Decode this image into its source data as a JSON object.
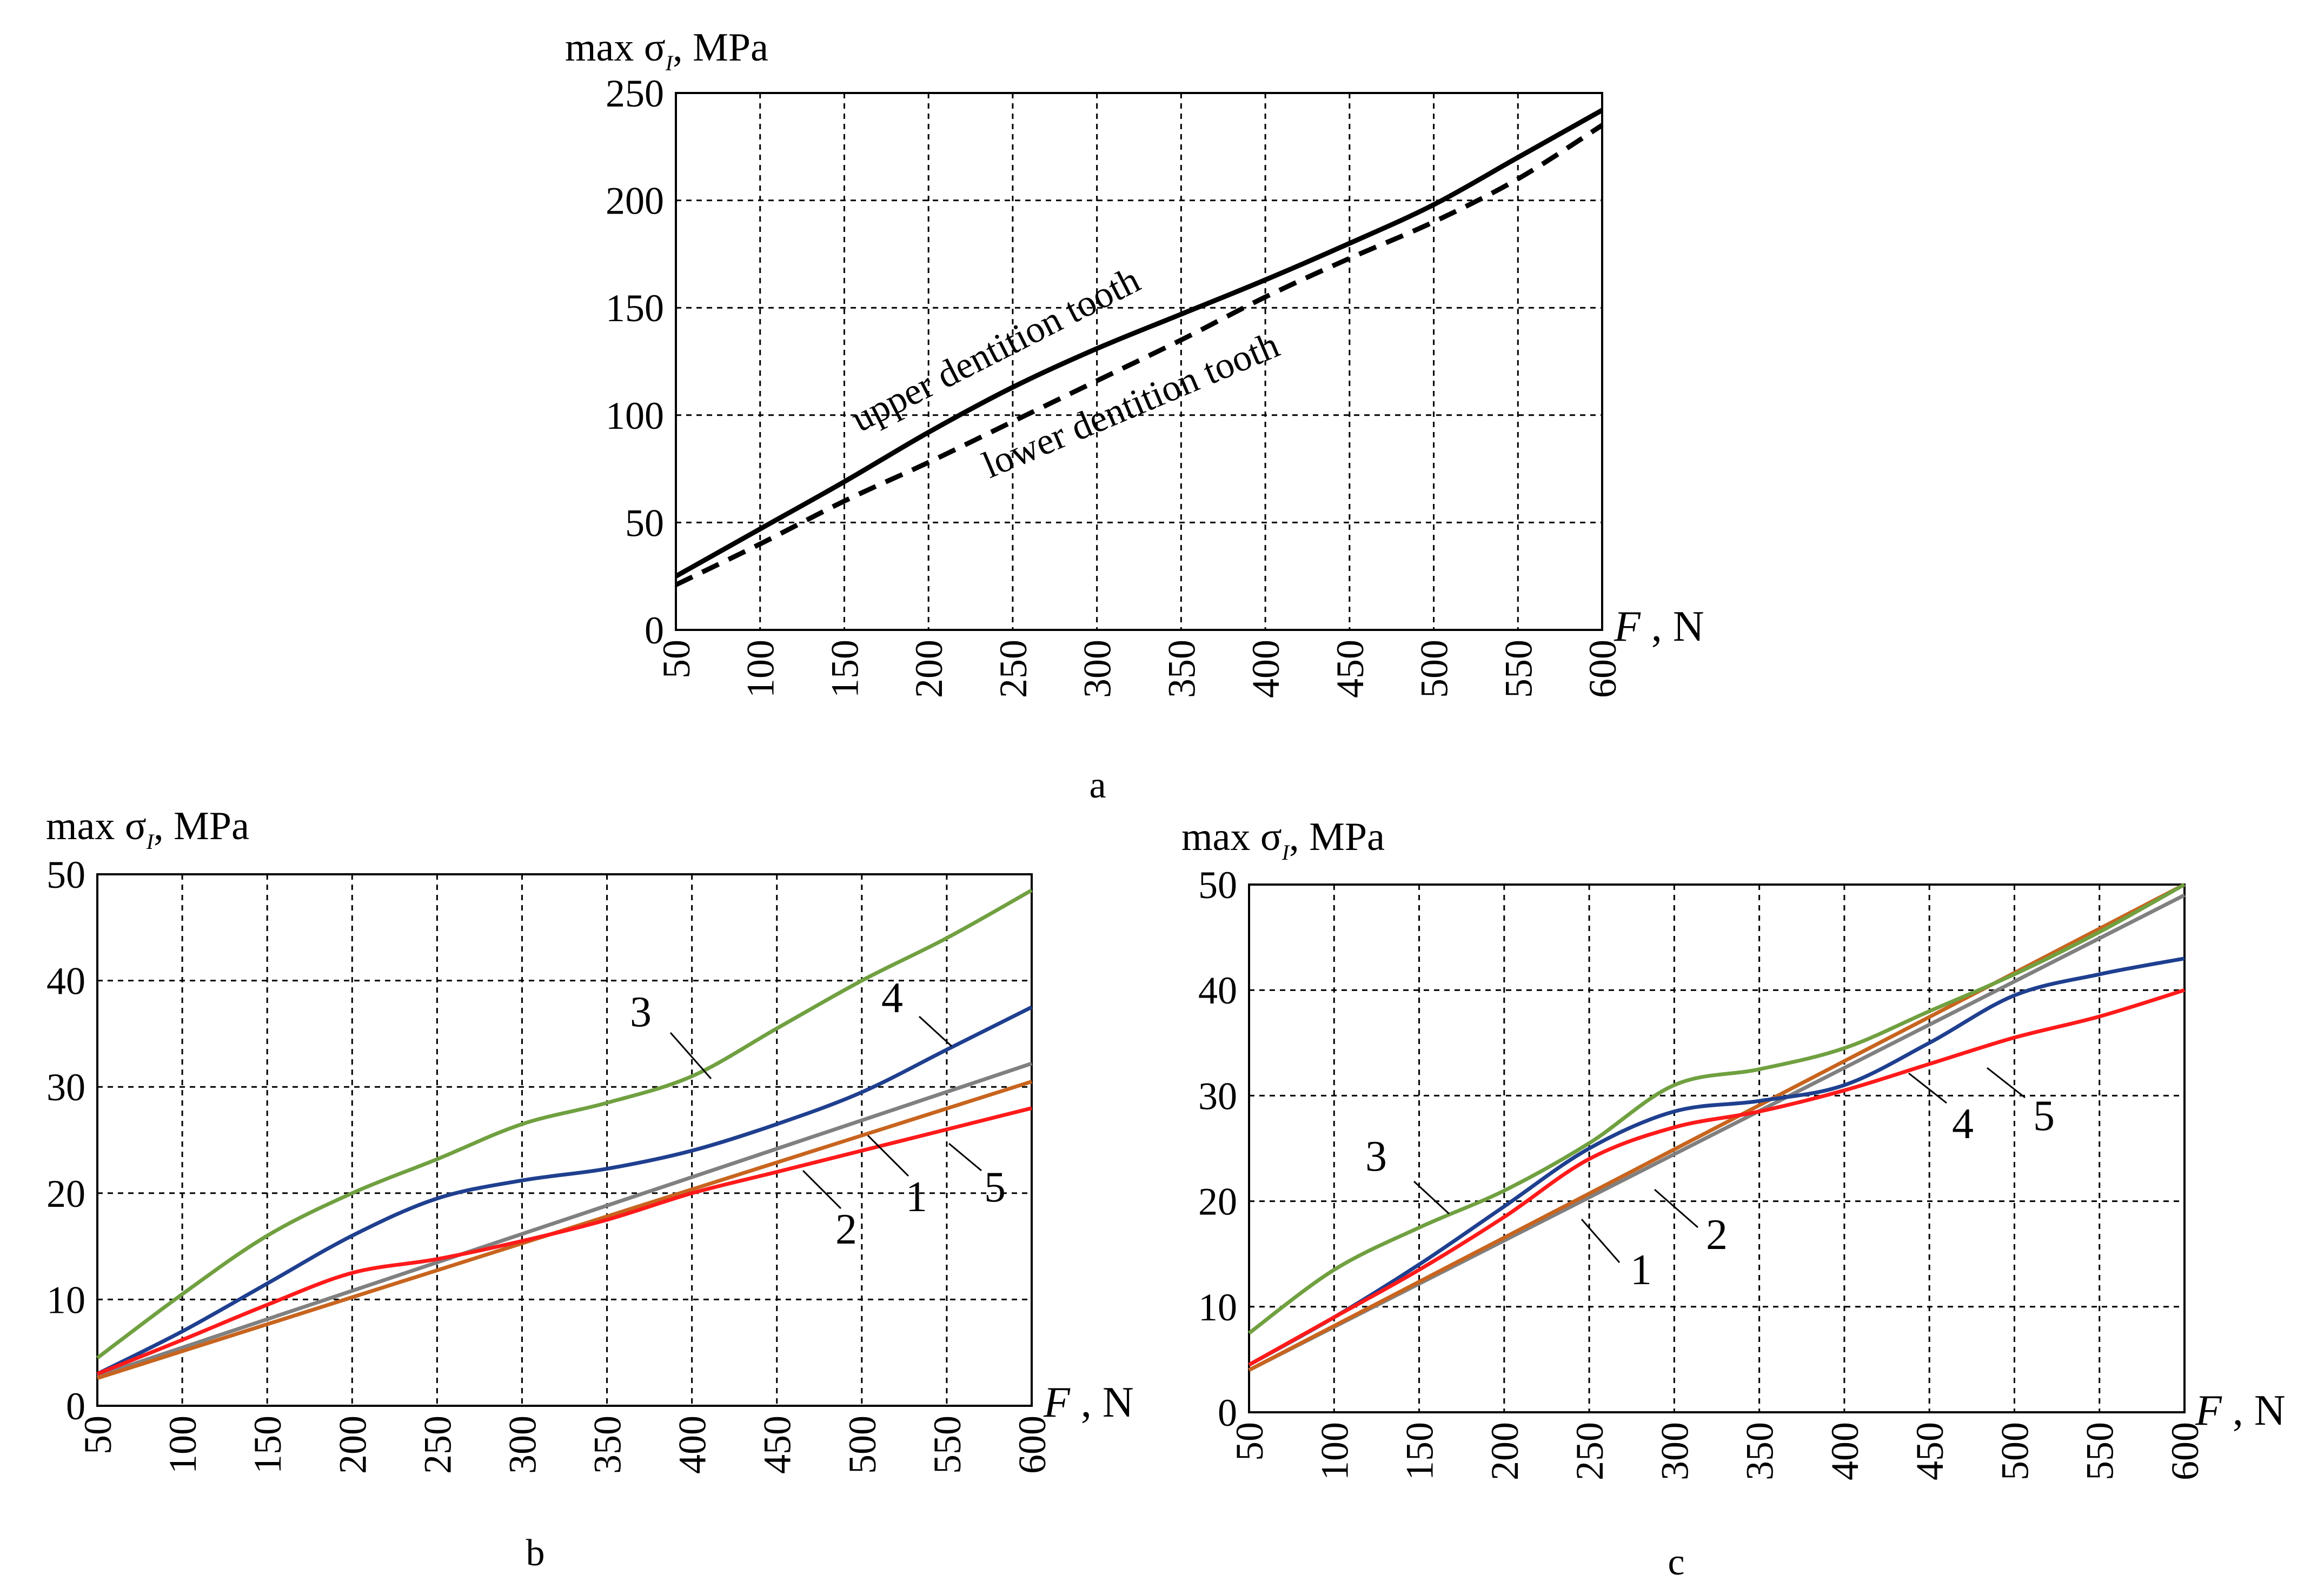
{
  "chart_data": [
    {
      "panel": "a",
      "type": "line",
      "caption": "a",
      "ylabel_prefix": "max σ",
      "ylabel_subscript": "I",
      "ylabel_suffix": ", MPa",
      "xlabel_symbol": "F",
      "xlabel_suffix": " , N",
      "xlim": [
        50,
        600
      ],
      "ylim": [
        0,
        250
      ],
      "xticks": [
        50,
        100,
        150,
        200,
        250,
        300,
        350,
        400,
        450,
        500,
        550,
        600
      ],
      "yticks": [
        0,
        50,
        100,
        150,
        200,
        250
      ],
      "grid": true,
      "series": [
        {
          "name": "upper dentition tooth",
          "color": "#000000",
          "style": "solid",
          "x": [
            50,
            100,
            150,
            200,
            250,
            300,
            350,
            400,
            450,
            500,
            550,
            600
          ],
          "y": [
            25,
            47,
            69,
            92,
            113,
            131,
            147,
            163,
            180,
            198,
            220,
            242
          ]
        },
        {
          "name": "lower dentition tooth",
          "color": "#000000",
          "style": "dashed",
          "x": [
            50,
            100,
            150,
            200,
            250,
            300,
            350,
            400,
            450,
            500,
            550,
            600
          ],
          "y": [
            21,
            40,
            60,
            78,
            97,
            116,
            135,
            155,
            173,
            190,
            210,
            235
          ]
        }
      ]
    },
    {
      "panel": "b",
      "type": "line",
      "caption": "b",
      "ylabel_prefix": "max σ",
      "ylabel_subscript": "I",
      "ylabel_suffix": ", MPa",
      "xlabel_symbol": "F",
      "xlabel_suffix": " , N",
      "xlim": [
        50,
        600
      ],
      "ylim": [
        0,
        50
      ],
      "xticks": [
        50,
        100,
        150,
        200,
        250,
        300,
        350,
        400,
        450,
        500,
        550,
        600
      ],
      "yticks": [
        0,
        10,
        20,
        30,
        40,
        50
      ],
      "grid": true,
      "series": [
        {
          "name": "1",
          "color": "#808080",
          "x": [
            50,
            600
          ],
          "y": [
            2.8,
            32.2
          ]
        },
        {
          "name": "2",
          "color": "#c8641e",
          "x": [
            50,
            600
          ],
          "y": [
            2.6,
            30.5
          ]
        },
        {
          "name": "3",
          "color": "#70a040",
          "x": [
            50,
            100,
            150,
            200,
            250,
            300,
            350,
            400,
            450,
            500,
            550,
            600
          ],
          "y": [
            4.5,
            10.5,
            16,
            20,
            23.2,
            26.5,
            28.5,
            31,
            35.5,
            40,
            44,
            48.5
          ]
        },
        {
          "name": "4",
          "color": "#1f3f8f",
          "x": [
            50,
            100,
            150,
            200,
            250,
            300,
            350,
            400,
            450,
            500,
            550,
            600
          ],
          "y": [
            3,
            7,
            11.5,
            16,
            19.5,
            21.2,
            22.3,
            24,
            26.5,
            29.5,
            33.5,
            37.5
          ]
        },
        {
          "name": "5",
          "color": "#ff1a1a",
          "x": [
            50,
            100,
            150,
            200,
            250,
            300,
            350,
            400,
            450,
            500,
            550,
            600
          ],
          "y": [
            3,
            6.2,
            9.5,
            12.5,
            13.8,
            15.5,
            17.5,
            20,
            22,
            24,
            26,
            28
          ]
        }
      ],
      "annotations": [
        "3",
        "4",
        "1",
        "5",
        "2"
      ]
    },
    {
      "panel": "c",
      "type": "line",
      "caption": "c",
      "ylabel_prefix": "max σ",
      "ylabel_subscript": "I",
      "ylabel_suffix": ", MPa",
      "xlabel_symbol": "F",
      "xlabel_suffix": " , N",
      "xlim": [
        50,
        600
      ],
      "ylim": [
        0,
        50
      ],
      "xticks": [
        50,
        100,
        150,
        200,
        250,
        300,
        350,
        400,
        450,
        500,
        550,
        600
      ],
      "yticks": [
        0,
        10,
        20,
        30,
        40,
        50
      ],
      "grid": true,
      "series": [
        {
          "name": "1",
          "color": "#808080",
          "x": [
            50,
            600
          ],
          "y": [
            4,
            49
          ]
        },
        {
          "name": "2",
          "color": "#c8641e",
          "x": [
            50,
            600
          ],
          "y": [
            4,
            50
          ]
        },
        {
          "name": "3",
          "color": "#70a040",
          "x": [
            50,
            100,
            150,
            200,
            250,
            300,
            350,
            400,
            450,
            500,
            550,
            600
          ],
          "y": [
            7.5,
            13.5,
            17.5,
            21,
            25.5,
            31,
            32.5,
            34.5,
            38,
            41.5,
            45.5,
            50
          ]
        },
        {
          "name": "4",
          "color": "#1f3f8f",
          "x": [
            50,
            100,
            150,
            200,
            250,
            300,
            350,
            400,
            450,
            500,
            550,
            600
          ],
          "y": [
            4.5,
            9,
            14,
            19.5,
            25,
            28.5,
            29.5,
            31,
            35,
            39.5,
            41.5,
            43
          ]
        },
        {
          "name": "5",
          "color": "#ff1a1a",
          "x": [
            50,
            100,
            150,
            200,
            250,
            300,
            350,
            400,
            450,
            500,
            550,
            600
          ],
          "y": [
            4.5,
            9,
            13.5,
            18.5,
            24,
            27,
            28.5,
            30.5,
            33,
            35.5,
            37.5,
            40
          ]
        }
      ],
      "annotations": [
        "3",
        "1",
        "2",
        "4",
        "5"
      ]
    }
  ]
}
